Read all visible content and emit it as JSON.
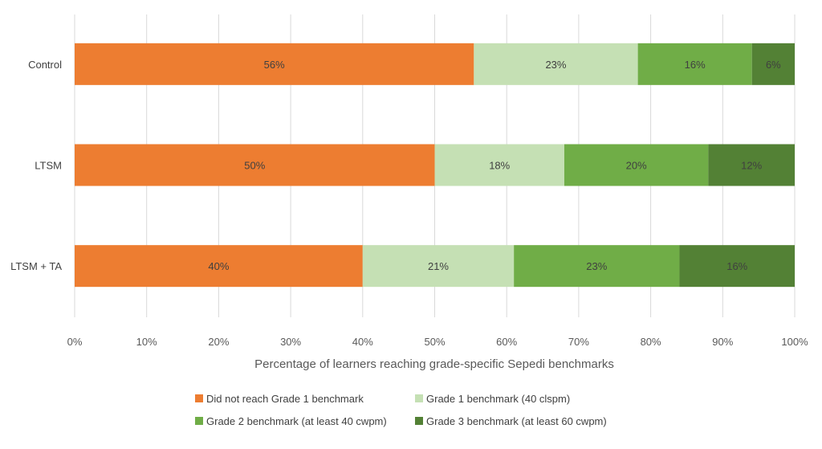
{
  "chart_data": {
    "type": "bar",
    "orientation": "horizontal",
    "stacked": "100%",
    "categories": [
      "Control",
      "LTSM",
      "LTSM + TA"
    ],
    "series": [
      {
        "name": "Did not reach Grade 1 benchmark",
        "color": "#ED7D31",
        "values": [
          56,
          50,
          40
        ],
        "labels": [
          "56%",
          "50%",
          "40%"
        ]
      },
      {
        "name": "Grade 1 benchmark (40 clspm)",
        "color": "#C5E0B4",
        "values": [
          23,
          18,
          21
        ],
        "labels": [
          "23%",
          "18%",
          "21%"
        ]
      },
      {
        "name": "Grade 2 benchmark (at least 40 cwpm)",
        "color": "#70AD47",
        "values": [
          16,
          20,
          23
        ],
        "labels": [
          "16%",
          "20%",
          "23%"
        ]
      },
      {
        "name": "Grade 3 benchmark (at least 60 cwpm)",
        "color": "#538135",
        "values": [
          6,
          12,
          16
        ],
        "labels": [
          "6%",
          "12%",
          "16%"
        ]
      }
    ],
    "xlabel": "Percentage of learners reaching grade-specific Sepedi benchmarks",
    "ylabel": "",
    "xlim": [
      0,
      100
    ],
    "xticks": [
      "0%",
      "10%",
      "20%",
      "30%",
      "40%",
      "50%",
      "60%",
      "70%",
      "80%",
      "90%",
      "100%"
    ],
    "grid": "vertical",
    "legend": "bottom"
  }
}
